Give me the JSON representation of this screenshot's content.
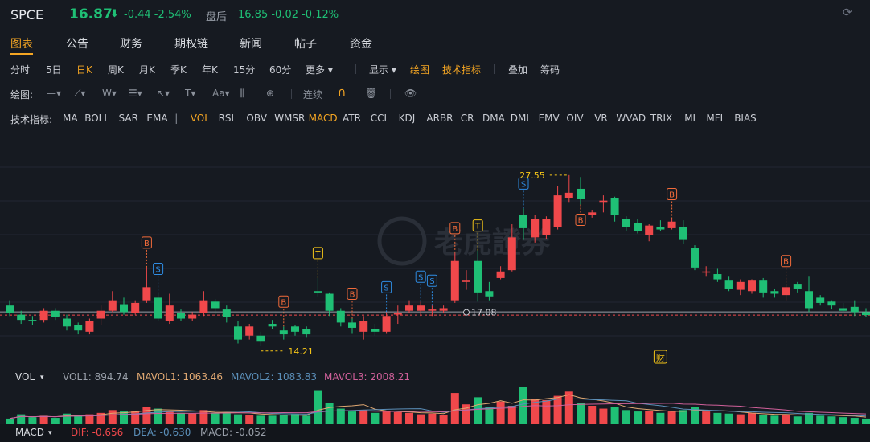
{
  "header": {
    "symbol": "SPCE",
    "price": "16.87",
    "arrow": "⬇",
    "change": "-0.44 -2.54%",
    "after_hours_label": "盘后",
    "after_hours": "16.85 -0.02 -0.12%"
  },
  "tabs": [
    "图表",
    "公告",
    "财务",
    "期权链",
    "新闻",
    "帖子",
    "资金"
  ],
  "periods": [
    "分时",
    "5日",
    "日K",
    "周K",
    "月K",
    "季K",
    "年K",
    "15分",
    "60分",
    "更多 ▾"
  ],
  "period_active": "日K",
  "display": {
    "show": "显示 ▾",
    "draw": "绘图",
    "tech": "技术指标",
    "overlay": "叠加",
    "chips": "筹码"
  },
  "draw_toolbar": {
    "label": "绘图:",
    "continuous": "连续"
  },
  "indicators": {
    "label": "技术指标:",
    "items": [
      "MA",
      "BOLL",
      "SAR",
      "EMA",
      "|",
      "VOL",
      "RSI",
      "OBV",
      "WMSR",
      "MACD",
      "ATR",
      "CCI",
      "KDJ",
      "ARBR",
      "CR",
      "DMA",
      "DMI",
      "EMV",
      "OIV",
      "VR",
      "WVAD",
      "TRIX",
      "MI",
      "MFI",
      "BIAS"
    ],
    "active": [
      "VOL",
      "MACD"
    ]
  },
  "watermark": "老虎證券",
  "chart_data": {
    "type": "candlestick",
    "high_label": "27.55",
    "low_label": "14.21",
    "price_marker": "17.08",
    "event_label": "财",
    "colors": {
      "up": "#f0484b",
      "down": "#1fbf75",
      "buy": "#f26b3a",
      "sell": "#2f8de4",
      "trade": "#f5c518"
    },
    "candles": [
      [
        17.6,
        17.0,
        18.0,
        16.8
      ],
      [
        16.9,
        16.5,
        17.2,
        16.2
      ],
      [
        16.5,
        16.4,
        16.8,
        16.1
      ],
      [
        16.5,
        17.2,
        17.4,
        16.3
      ],
      [
        17.2,
        16.7,
        17.4,
        16.5
      ],
      [
        16.6,
        16.0,
        16.9,
        15.7
      ],
      [
        16.1,
        15.7,
        16.3,
        15.4
      ],
      [
        15.6,
        16.4,
        16.6,
        15.4
      ],
      [
        16.6,
        17.2,
        17.6,
        16.1
      ],
      [
        17.2,
        18.0,
        18.7,
        17.1
      ],
      [
        17.7,
        17.1,
        18.2,
        16.9
      ],
      [
        17.0,
        17.8,
        18.0,
        16.9
      ],
      [
        18.0,
        19.0,
        20.5,
        17.8
      ],
      [
        18.2,
        16.6,
        18.5,
        16.4
      ],
      [
        16.4,
        17.6,
        18.5,
        16.2
      ],
      [
        17.0,
        16.6,
        17.3,
        16.4
      ],
      [
        16.6,
        16.9,
        17.1,
        16.4
      ],
      [
        17.0,
        18.0,
        18.7,
        16.8
      ],
      [
        17.9,
        17.4,
        18.1,
        16.9
      ],
      [
        17.3,
        16.7,
        17.6,
        16.3
      ],
      [
        16.0,
        15.0,
        16.4,
        14.7
      ],
      [
        15.3,
        16.0,
        16.2,
        15.0
      ],
      [
        15.3,
        14.9,
        15.6,
        14.5
      ],
      [
        16.2,
        16.0,
        16.5,
        15.8
      ],
      [
        15.7,
        15.4,
        16.0,
        15.0
      ],
      [
        16.0,
        15.6,
        16.1,
        15.3
      ],
      [
        15.8,
        15.4,
        16.0,
        15.2
      ],
      [
        18.7,
        18.6,
        19.7,
        18.3
      ],
      [
        18.5,
        17.2,
        18.6,
        16.8
      ],
      [
        17.2,
        16.3,
        17.4,
        16.0
      ],
      [
        16.3,
        15.9,
        16.6,
        15.5
      ],
      [
        15.6,
        16.4,
        16.8,
        15.0
      ],
      [
        15.8,
        15.6,
        16.2,
        15.3
      ],
      [
        15.6,
        16.8,
        17.1,
        15.5
      ],
      [
        17.0,
        17.0,
        17.6,
        16.2
      ],
      [
        17.2,
        17.6,
        18.0,
        17.0
      ],
      [
        17.2,
        17.6,
        17.9,
        16.8
      ],
      [
        17.2,
        17.3,
        17.6,
        16.8
      ],
      [
        17.2,
        17.4,
        17.6,
        17.0
      ],
      [
        18.0,
        21.0,
        21.6,
        17.8
      ],
      [
        19.4,
        19.5,
        20.3,
        18.8
      ],
      [
        21.0,
        18.6,
        21.8,
        17.9
      ],
      [
        18.7,
        18.3,
        19.4,
        18.0
      ],
      [
        19.7,
        20.2,
        20.6,
        19.6
      ],
      [
        20.3,
        22.8,
        23.8,
        20.2
      ],
      [
        24.5,
        23.5,
        25.0,
        22.6
      ],
      [
        22.8,
        24.2,
        24.5,
        22.4
      ],
      [
        23.0,
        24.2,
        24.4,
        22.7
      ],
      [
        23.6,
        26.0,
        26.7,
        23.4
      ],
      [
        25.8,
        26.2,
        27.55,
        25.5
      ],
      [
        26.5,
        25.7,
        27.4,
        25.3
      ],
      [
        24.5,
        24.7,
        24.9,
        24.3
      ],
      [
        25.5,
        25.6,
        26.0,
        24.7
      ],
      [
        25.8,
        24.5,
        25.9,
        24.0
      ],
      [
        24.2,
        23.6,
        24.4,
        23.3
      ],
      [
        23.9,
        23.3,
        24.2,
        23.1
      ],
      [
        23.0,
        23.7,
        23.8,
        22.5
      ],
      [
        23.6,
        23.4,
        24.1,
        23.3
      ],
      [
        23.5,
        24.0,
        24.2,
        23.4
      ],
      [
        23.6,
        22.6,
        24.1,
        22.3
      ],
      [
        22.0,
        20.5,
        22.2,
        20.3
      ],
      [
        20.2,
        20.2,
        20.6,
        19.8
      ],
      [
        20.0,
        19.6,
        20.4,
        19.4
      ],
      [
        19.5,
        18.9,
        19.8,
        18.7
      ],
      [
        18.8,
        19.4,
        19.6,
        18.4
      ],
      [
        18.7,
        19.5,
        19.6,
        18.5
      ],
      [
        19.5,
        18.6,
        19.7,
        18.2
      ],
      [
        18.7,
        18.5,
        18.9,
        18.2
      ],
      [
        18.4,
        19.0,
        19.1,
        18.0
      ],
      [
        19.2,
        18.9,
        19.4,
        18.6
      ],
      [
        18.7,
        17.4,
        19.8,
        17.1
      ],
      [
        18.2,
        17.8,
        18.4,
        17.6
      ],
      [
        17.9,
        17.6,
        18.0,
        17.3
      ],
      [
        17.4,
        17.2,
        17.8,
        17.1
      ],
      [
        17.5,
        17.1,
        18.0,
        16.8
      ],
      [
        17.1,
        16.87,
        17.4,
        16.7
      ]
    ],
    "markers": [
      {
        "i": 12,
        "type": "B"
      },
      {
        "i": 13,
        "type": "S"
      },
      {
        "i": 24,
        "type": "B"
      },
      {
        "i": 27,
        "type": "T"
      },
      {
        "i": 30,
        "type": "B"
      },
      {
        "i": 33,
        "type": "S"
      },
      {
        "i": 36,
        "type": "S"
      },
      {
        "i": 37,
        "type": "S"
      },
      {
        "i": 39,
        "type": "B"
      },
      {
        "i": 41,
        "type": "T"
      },
      {
        "i": 45,
        "type": "S"
      },
      {
        "i": 50,
        "type": "B",
        "below": true
      },
      {
        "i": 58,
        "type": "B"
      },
      {
        "i": 68,
        "type": "B"
      }
    ]
  },
  "volume": {
    "label": "VOL",
    "vol1": "VOL1: 894.74",
    "mavol1": "MAVOL1: 1063.46",
    "mavol2": "MAVOL2: 1083.83",
    "mavol3": "MAVOL3: 2008.21",
    "colors": {
      "mavol1": "#e0a872",
      "mavol2": "#5b8fb9",
      "mavol3": "#d0609a"
    },
    "values": [
      8,
      14,
      10,
      12,
      9,
      15,
      13,
      14,
      16,
      20,
      18,
      19,
      24,
      22,
      18,
      16,
      15,
      20,
      16,
      17,
      14,
      13,
      12,
      12,
      13,
      14,
      12,
      48,
      30,
      22,
      18,
      20,
      16,
      18,
      17,
      16,
      14,
      15,
      13,
      44,
      28,
      38,
      24,
      32,
      26,
      52,
      36,
      34,
      40,
      46,
      30,
      26,
      22,
      24,
      20,
      18,
      19,
      16,
      18,
      20,
      24,
      18,
      16,
      15,
      14,
      16,
      13,
      12,
      14,
      11,
      16,
      12,
      11,
      10,
      9,
      8
    ]
  },
  "macd": {
    "label": "MACD",
    "dif": "DIF: -0.656",
    "dea": "DEA: -0.630",
    "macd": "MACD: -0.052"
  }
}
